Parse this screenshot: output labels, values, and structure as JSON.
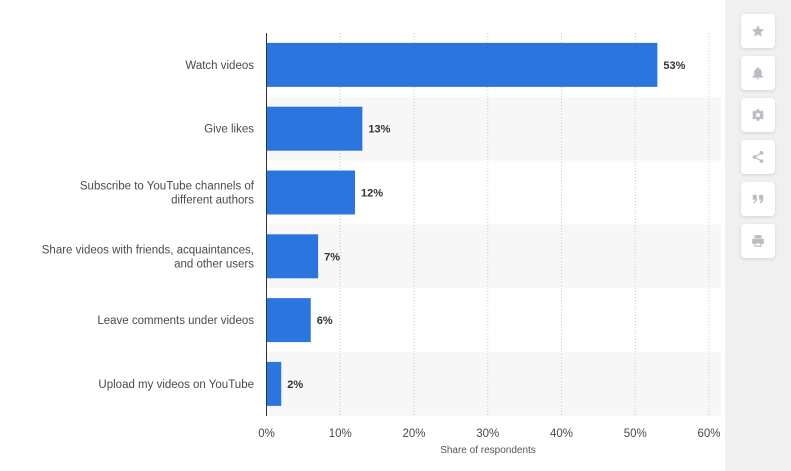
{
  "chart_data": {
    "type": "bar",
    "orientation": "horizontal",
    "categories": [
      [
        "Watch videos"
      ],
      [
        "Give likes"
      ],
      [
        "Subscribe to YouTube channels of",
        "different authors"
      ],
      [
        "Share videos with friends, acquaintances,",
        "and other users"
      ],
      [
        "Leave comments under videos"
      ],
      [
        "Upload my videos on YouTube"
      ]
    ],
    "values": [
      53,
      13,
      12,
      7,
      6,
      2
    ],
    "value_labels": [
      "53%",
      "13%",
      "12%",
      "7%",
      "6%",
      "2%"
    ],
    "xlim": [
      0,
      60
    ],
    "xticks": [
      0,
      10,
      20,
      30,
      40,
      50,
      60
    ],
    "xtick_labels": [
      "0%",
      "10%",
      "20%",
      "30%",
      "40%",
      "50%",
      "60%"
    ],
    "xlabel": "Share of respondents",
    "grid": true,
    "bar_color": "#2b76de",
    "band_color": "#f7f7f7"
  },
  "toolbar": {
    "buttons": [
      {
        "name": "favorite",
        "icon": "star-icon"
      },
      {
        "name": "notify",
        "icon": "bell-icon"
      },
      {
        "name": "settings",
        "icon": "gear-icon"
      },
      {
        "name": "share",
        "icon": "share-icon"
      },
      {
        "name": "cite",
        "icon": "quote-icon"
      },
      {
        "name": "print",
        "icon": "print-icon"
      }
    ]
  }
}
